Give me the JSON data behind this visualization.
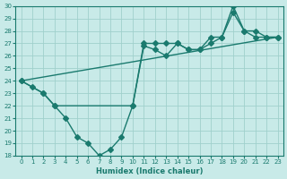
{
  "xlabel": "Humidex (Indice chaleur)",
  "xlim": [
    -0.5,
    23.5
  ],
  "ylim": [
    18,
    30
  ],
  "yticks": [
    18,
    19,
    20,
    21,
    22,
    23,
    24,
    25,
    26,
    27,
    28,
    29,
    30
  ],
  "xticks": [
    0,
    1,
    2,
    3,
    4,
    5,
    6,
    7,
    8,
    9,
    10,
    11,
    12,
    13,
    14,
    15,
    16,
    17,
    18,
    19,
    20,
    21,
    22,
    23
  ],
  "line_color": "#1a7a6e",
  "bg_color": "#c8eae8",
  "grid_color": "#a0d0cc",
  "line1_x": [
    0,
    1,
    2,
    3,
    4,
    5,
    6,
    7,
    8,
    9,
    10,
    11,
    12,
    13,
    14,
    15,
    16,
    17,
    18,
    19,
    20,
    21,
    22,
    23
  ],
  "line1_y": [
    24,
    23.5,
    23,
    22,
    21,
    19.5,
    19,
    18,
    18.5,
    19.5,
    22,
    26.8,
    26.5,
    26,
    27,
    26.5,
    26.5,
    27,
    27.5,
    30,
    28,
    27.5,
    27.5,
    27.5
  ],
  "line2_x": [
    0,
    2,
    3,
    10,
    11,
    12,
    13,
    14,
    15,
    16,
    17,
    18,
    19,
    20,
    21,
    22,
    23
  ],
  "line2_y": [
    24,
    23,
    22,
    22,
    27,
    27,
    27,
    27,
    26.5,
    26.5,
    27.5,
    27.5,
    29.5,
    28,
    28,
    27.5,
    27.5
  ],
  "line3_x": [
    0,
    23
  ],
  "line3_y": [
    24,
    27.5
  ],
  "marker": "D",
  "markersize": 3.0,
  "linewidth": 1.0
}
